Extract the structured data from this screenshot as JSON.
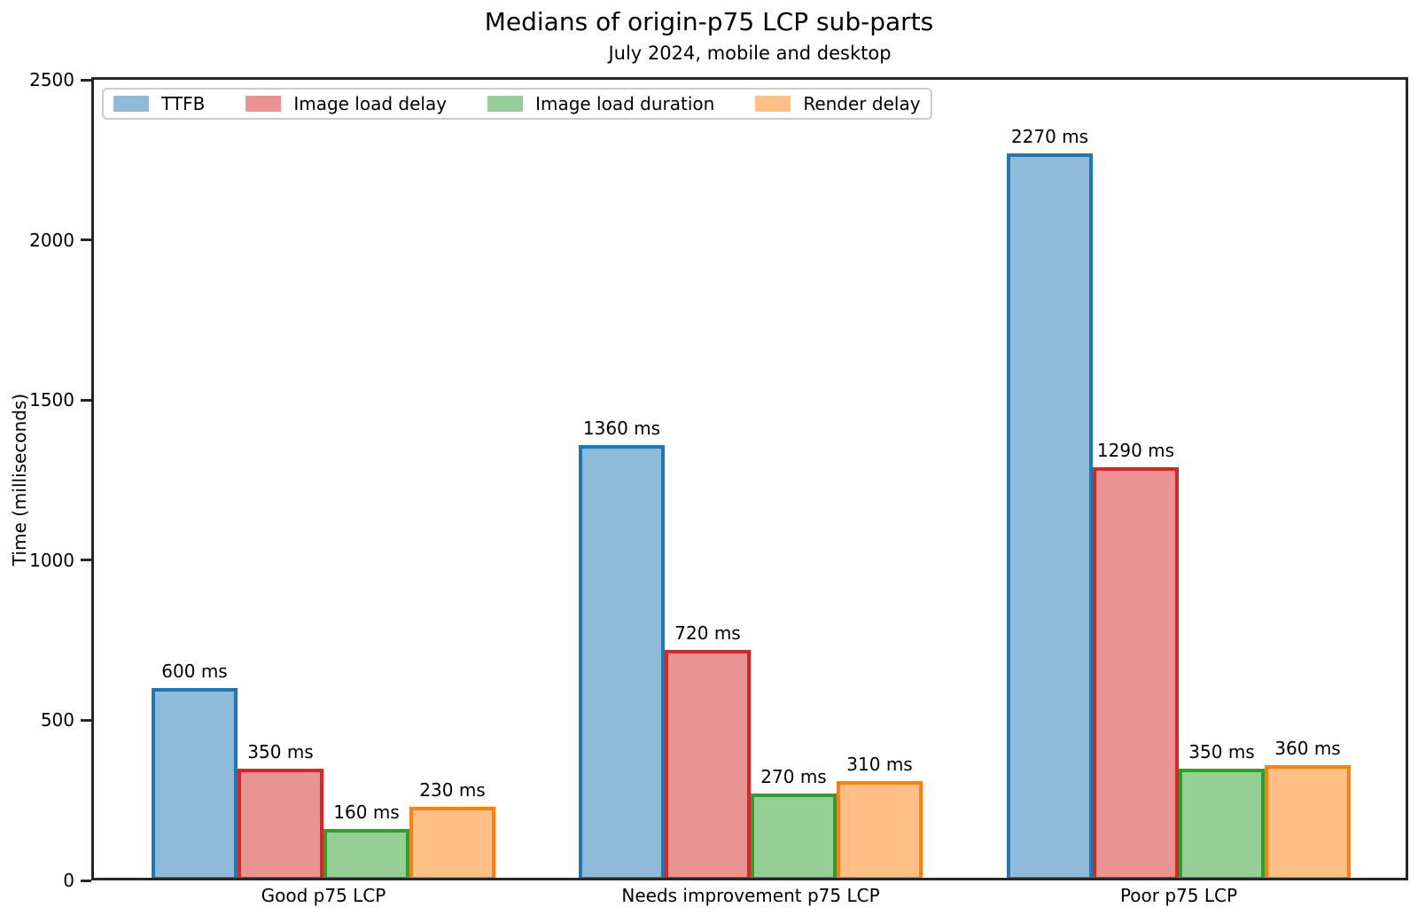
{
  "title": "Medians of origin-p75 LCP sub-parts",
  "subtitle": "July 2024, mobile and desktop",
  "chart_data": {
    "type": "bar",
    "title": "Medians of origin-p75 LCP sub-parts",
    "subtitle": "July 2024, mobile and desktop",
    "categories": [
      "Good p75 LCP",
      "Needs improvement p75 LCP",
      "Poor p75 LCP"
    ],
    "series": [
      {
        "name": "TTFB",
        "color": "#1f77b4",
        "fill": "rgba(31,119,180,0.5)",
        "values": [
          600,
          1360,
          2270
        ],
        "labels": [
          "600 ms",
          "1360 ms",
          "2270 ms"
        ]
      },
      {
        "name": "Image load delay",
        "color": "#d62728",
        "fill": "rgba(214,39,40,0.5)",
        "values": [
          350,
          720,
          1290
        ],
        "labels": [
          "350 ms",
          "720 ms",
          "1290 ms"
        ]
      },
      {
        "name": "Image load duration",
        "color": "#2ca02c",
        "fill": "rgba(44,160,44,0.5)",
        "values": [
          160,
          270,
          350
        ],
        "labels": [
          "160 ms",
          "270 ms",
          "350 ms"
        ]
      },
      {
        "name": "Render delay",
        "color": "#ff7f0e",
        "fill": "rgba(255,127,14,0.5)",
        "values": [
          230,
          310,
          360
        ],
        "labels": [
          "230 ms",
          "310 ms",
          "360 ms"
        ]
      }
    ],
    "unit": "ms",
    "xlabel": "",
    "ylabel": "Time (milliseconds)",
    "ylim": [
      0,
      2500
    ],
    "yticks": [
      0,
      500,
      1000,
      1500,
      2000,
      2500
    ],
    "grid": false,
    "legend": {
      "position": "top-left",
      "entries": [
        "TTFB",
        "Image load delay",
        "Image load duration",
        "Render delay"
      ]
    },
    "colors": {
      "background": "#ffffff",
      "spine": "#262626",
      "text": "#000000",
      "legend_border": "#cbcbcb"
    }
  }
}
